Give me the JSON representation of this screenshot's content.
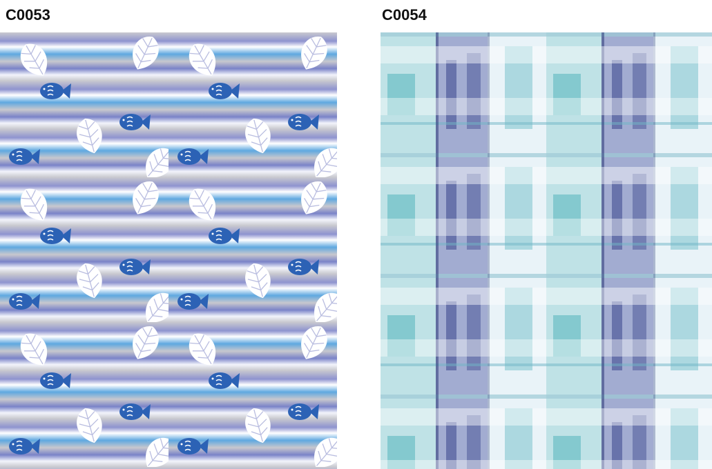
{
  "items": [
    {
      "code": "C0053"
    },
    {
      "code": "C0054"
    }
  ]
}
